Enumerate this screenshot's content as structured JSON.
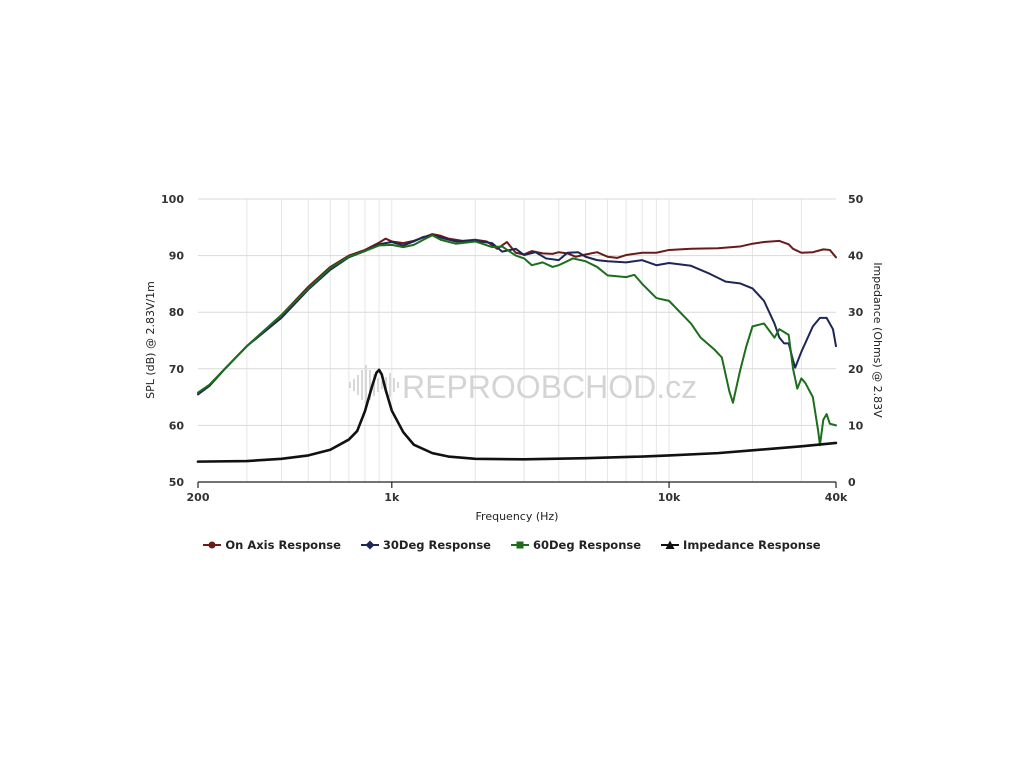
{
  "watermark": "REPROOBCHOD.cz",
  "chart_data": {
    "type": "line",
    "title": "",
    "xlabel": "Frequency (Hz)",
    "ylabel": "SPL (dB) @ 2.83V/1m",
    "y2label": "Impedance (Ohms) @ 2.83V",
    "xscale": "log",
    "xlim": [
      200,
      40000
    ],
    "ylim": [
      50,
      100
    ],
    "y2lim": [
      0,
      50
    ],
    "grid": true,
    "legend_position": "bottom",
    "x_ticks": [
      {
        "value": 200,
        "label": "200"
      },
      {
        "value": 1000,
        "label": "1k"
      },
      {
        "value": 10000,
        "label": "10k"
      },
      {
        "value": 40000,
        "label": "40k"
      }
    ],
    "y_ticks": [
      "50",
      "60",
      "70",
      "80",
      "90",
      "100"
    ],
    "y2_ticks": [
      "0",
      "10",
      "20",
      "30",
      "40",
      "50"
    ],
    "series": [
      {
        "name": "On Axis Response",
        "color": "#6b1a1a",
        "marker": "circle",
        "axis": "left",
        "points": [
          [
            200,
            65.5
          ],
          [
            220,
            67
          ],
          [
            250,
            70
          ],
          [
            300,
            74
          ],
          [
            400,
            79.5
          ],
          [
            500,
            84.5
          ],
          [
            600,
            88
          ],
          [
            700,
            90
          ],
          [
            800,
            91
          ],
          [
            900,
            92.3
          ],
          [
            950,
            93
          ],
          [
            1000,
            92.5
          ],
          [
            1100,
            92.2
          ],
          [
            1200,
            92.6
          ],
          [
            1300,
            93.2
          ],
          [
            1400,
            93.8
          ],
          [
            1500,
            93.5
          ],
          [
            1600,
            93
          ],
          [
            1800,
            92.6
          ],
          [
            2000,
            92.8
          ],
          [
            2200,
            92.5
          ],
          [
            2400,
            91.2
          ],
          [
            2600,
            92.4
          ],
          [
            2800,
            90.5
          ],
          [
            3000,
            90.2
          ],
          [
            3200,
            90.8
          ],
          [
            3500,
            90.4
          ],
          [
            3800,
            90.3
          ],
          [
            4000,
            90.6
          ],
          [
            4300,
            90.4
          ],
          [
            4600,
            89.8
          ],
          [
            5000,
            90.2
          ],
          [
            5500,
            90.6
          ],
          [
            6000,
            89.8
          ],
          [
            6500,
            89.6
          ],
          [
            7000,
            90.1
          ],
          [
            8000,
            90.5
          ],
          [
            9000,
            90.5
          ],
          [
            10000,
            91
          ],
          [
            12000,
            91.2
          ],
          [
            15000,
            91.3
          ],
          [
            18000,
            91.6
          ],
          [
            20000,
            92.1
          ],
          [
            22000,
            92.4
          ],
          [
            25000,
            92.6
          ],
          [
            27000,
            92
          ],
          [
            28000,
            91.2
          ],
          [
            30000,
            90.5
          ],
          [
            33000,
            90.6
          ],
          [
            36000,
            91.1
          ],
          [
            38000,
            91
          ],
          [
            40000,
            89.7
          ]
        ]
      },
      {
        "name": "30Deg Response",
        "color": "#1c2657",
        "marker": "diamond",
        "axis": "left",
        "points": [
          [
            200,
            65.5
          ],
          [
            220,
            67
          ],
          [
            250,
            70
          ],
          [
            300,
            74
          ],
          [
            400,
            79
          ],
          [
            500,
            84
          ],
          [
            600,
            87.5
          ],
          [
            700,
            89.7
          ],
          [
            800,
            90.8
          ],
          [
            900,
            92
          ],
          [
            1000,
            92.4
          ],
          [
            1100,
            91.8
          ],
          [
            1200,
            92.5
          ],
          [
            1300,
            93.3
          ],
          [
            1400,
            93.6
          ],
          [
            1500,
            93.2
          ],
          [
            1700,
            92.5
          ],
          [
            2000,
            92.6
          ],
          [
            2300,
            92.2
          ],
          [
            2500,
            90.7
          ],
          [
            2800,
            91.2
          ],
          [
            3000,
            90.1
          ],
          [
            3300,
            90.6
          ],
          [
            3600,
            89.5
          ],
          [
            4000,
            89.2
          ],
          [
            4300,
            90.5
          ],
          [
            4700,
            90.6
          ],
          [
            5000,
            89.8
          ],
          [
            5500,
            89.2
          ],
          [
            6000,
            89
          ],
          [
            7000,
            88.8
          ],
          [
            8000,
            89.2
          ],
          [
            9000,
            88.3
          ],
          [
            10000,
            88.7
          ],
          [
            12000,
            88.2
          ],
          [
            14000,
            86.8
          ],
          [
            16000,
            85.4
          ],
          [
            18000,
            85.1
          ],
          [
            20000,
            84.2
          ],
          [
            22000,
            82
          ],
          [
            24000,
            78
          ],
          [
            25000,
            75.5
          ],
          [
            26000,
            74.5
          ],
          [
            27000,
            74.5
          ],
          [
            28000,
            71.5
          ],
          [
            28500,
            70.2
          ],
          [
            30000,
            73
          ],
          [
            33000,
            77.5
          ],
          [
            35000,
            79
          ],
          [
            37000,
            79
          ],
          [
            39000,
            77
          ],
          [
            40000,
            74
          ]
        ]
      },
      {
        "name": "60Deg Response",
        "color": "#1b6e1b",
        "marker": "square",
        "axis": "left",
        "points": [
          [
            200,
            65.8
          ],
          [
            220,
            67.2
          ],
          [
            250,
            70
          ],
          [
            300,
            74
          ],
          [
            400,
            79.5
          ],
          [
            500,
            84.2
          ],
          [
            600,
            87.8
          ],
          [
            700,
            89.8
          ],
          [
            800,
            90.8
          ],
          [
            900,
            91.8
          ],
          [
            1000,
            91.9
          ],
          [
            1100,
            91.5
          ],
          [
            1200,
            91.9
          ],
          [
            1300,
            92.8
          ],
          [
            1400,
            93.6
          ],
          [
            1500,
            92.8
          ],
          [
            1700,
            92.1
          ],
          [
            2000,
            92.5
          ],
          [
            2300,
            91.5
          ],
          [
            2500,
            91.6
          ],
          [
            2800,
            90
          ],
          [
            3000,
            89.5
          ],
          [
            3200,
            88.3
          ],
          [
            3500,
            88.8
          ],
          [
            3800,
            88
          ],
          [
            4000,
            88.3
          ],
          [
            4500,
            89.5
          ],
          [
            5000,
            89
          ],
          [
            5500,
            88
          ],
          [
            6000,
            86.5
          ],
          [
            7000,
            86.2
          ],
          [
            7500,
            86.6
          ],
          [
            8000,
            85
          ],
          [
            9000,
            82.5
          ],
          [
            10000,
            82
          ],
          [
            12000,
            78
          ],
          [
            13000,
            75.5
          ],
          [
            14500,
            73.5
          ],
          [
            15500,
            72
          ],
          [
            16500,
            66
          ],
          [
            17000,
            64
          ],
          [
            18000,
            69.5
          ],
          [
            19000,
            74
          ],
          [
            20000,
            77.5
          ],
          [
            22000,
            78
          ],
          [
            24000,
            75.5
          ],
          [
            25000,
            77
          ],
          [
            27000,
            76
          ],
          [
            28000,
            70
          ],
          [
            29000,
            66.5
          ],
          [
            30000,
            68.3
          ],
          [
            31000,
            67.5
          ],
          [
            33000,
            65
          ],
          [
            34500,
            59
          ],
          [
            35000,
            56.5
          ],
          [
            36000,
            61
          ],
          [
            37000,
            62
          ],
          [
            38000,
            60.3
          ],
          [
            40000,
            60
          ]
        ]
      },
      {
        "name": "Impedance Response",
        "color": "#111111",
        "marker": "triangle",
        "axis": "right",
        "points": [
          [
            200,
            3.6
          ],
          [
            300,
            3.7
          ],
          [
            400,
            4.1
          ],
          [
            500,
            4.7
          ],
          [
            600,
            5.7
          ],
          [
            700,
            7.5
          ],
          [
            750,
            9
          ],
          [
            800,
            12.5
          ],
          [
            850,
            17
          ],
          [
            880,
            19.3
          ],
          [
            900,
            19.8
          ],
          [
            920,
            19
          ],
          [
            950,
            16.3
          ],
          [
            1000,
            12.6
          ],
          [
            1100,
            8.8
          ],
          [
            1200,
            6.6
          ],
          [
            1400,
            5.1
          ],
          [
            1600,
            4.5
          ],
          [
            2000,
            4.1
          ],
          [
            3000,
            4
          ],
          [
            5000,
            4.2
          ],
          [
            8000,
            4.5
          ],
          [
            10000,
            4.7
          ],
          [
            15000,
            5.1
          ],
          [
            20000,
            5.6
          ],
          [
            30000,
            6.3
          ],
          [
            40000,
            6.9
          ]
        ]
      }
    ]
  }
}
